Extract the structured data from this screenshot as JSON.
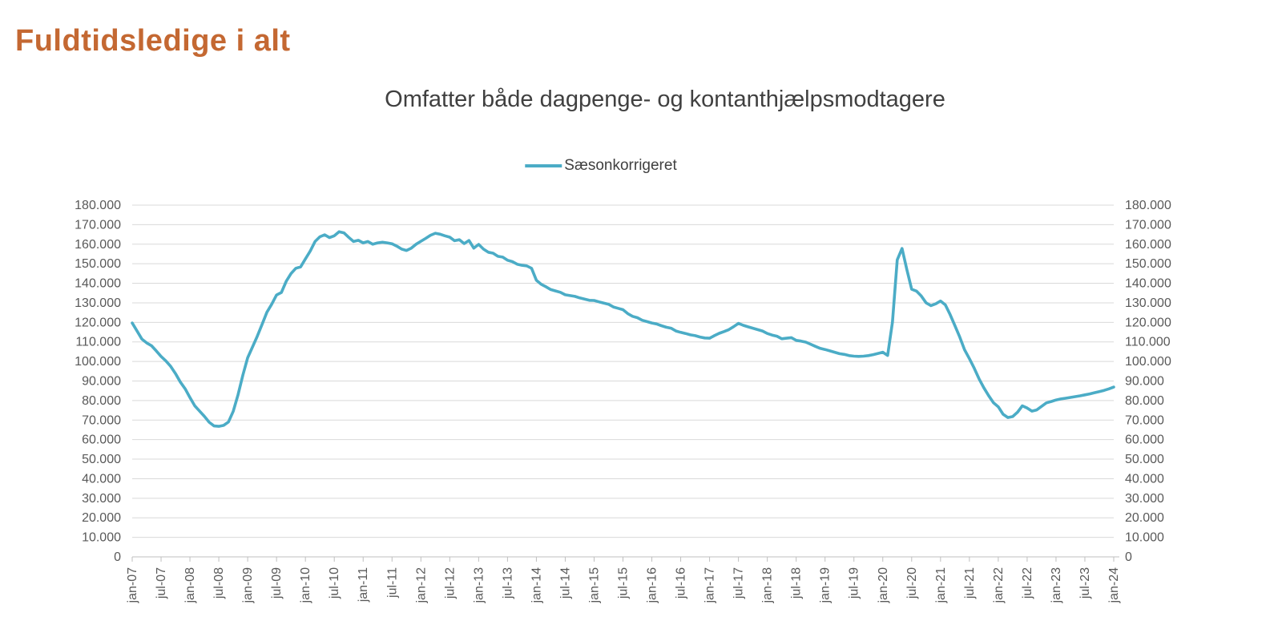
{
  "page": {
    "title": "Fuldtidsledige i alt",
    "title_color": "#C46832"
  },
  "chart": {
    "subtitle": "Omfatter både dagpenge- og kontanthjælpsmodtagere",
    "legend_label": "Sæsonkorrigeret",
    "text_color": "#404040",
    "axis_label_color": "#595959",
    "gridline_color": "#D9D9D9",
    "axis_line_color": "#BFBFBF"
  },
  "chart_data": {
    "type": "line",
    "title": "Omfatter både dagpenge- og kontanthjælpsmodtagere",
    "xlabel": "",
    "ylabel": "",
    "ylim": [
      0,
      180000
    ],
    "grid": "horizontal",
    "dual_y_axis": true,
    "legend_position": "top-center",
    "frequency": "monthly",
    "x_start": "jan-07",
    "x_end": "jan-24",
    "y_ticks": [
      0,
      10000,
      20000,
      30000,
      40000,
      50000,
      60000,
      70000,
      80000,
      90000,
      100000,
      110000,
      120000,
      130000,
      140000,
      150000,
      160000,
      170000,
      180000
    ],
    "x_tick_labels": [
      "jan-07",
      "jul-07",
      "jan-08",
      "jul-08",
      "jan-09",
      "jul-09",
      "jan-10",
      "jul-10",
      "jan-11",
      "jul-11",
      "jan-12",
      "jul-12",
      "jan-13",
      "jul-13",
      "jan-14",
      "jul-14",
      "jan-15",
      "jul-15",
      "jan-16",
      "jul-16",
      "jan-17",
      "jul-17",
      "jan-18",
      "jul-18",
      "jan-19",
      "jul-19",
      "jan-20",
      "jul-20",
      "jan-21",
      "jul-21",
      "jan-22",
      "jul-22",
      "jan-23",
      "jul-23",
      "jan-24"
    ],
    "series": [
      {
        "name": "Sæsonkorrigeret",
        "color": "#4BACC6",
        "values": [
          119700,
          115600,
          111500,
          109500,
          108100,
          105400,
          102600,
          100300,
          97500,
          93800,
          89500,
          86000,
          81500,
          77300,
          74600,
          71900,
          68900,
          67000,
          66800,
          67300,
          69000,
          74500,
          83000,
          93000,
          101900,
          107400,
          112900,
          119000,
          125200,
          129300,
          134000,
          135300,
          141000,
          145000,
          147700,
          148400,
          152500,
          156500,
          161400,
          163800,
          164800,
          163400,
          164300,
          166400,
          165800,
          163500,
          161400,
          162000,
          160700,
          161400,
          160000,
          160700,
          161000,
          160700,
          160200,
          159000,
          157500,
          156800,
          158000,
          160000,
          161500,
          163000,
          164600,
          165600,
          165100,
          164300,
          163600,
          161800,
          162300,
          160300,
          161900,
          158000,
          159900,
          157500,
          155900,
          155400,
          153800,
          153400,
          151800,
          151100,
          149800,
          149200,
          148900,
          147700,
          141600,
          139500,
          138200,
          136800,
          136100,
          135400,
          134100,
          133700,
          133300,
          132500,
          131900,
          131300,
          131200,
          130500,
          129900,
          129300,
          127900,
          127200,
          126500,
          124500,
          123100,
          122400,
          121100,
          120400,
          119700,
          119200,
          118300,
          117500,
          117000,
          115600,
          114900,
          114300,
          113600,
          113200,
          112500,
          112000,
          111900,
          113200,
          114400,
          115300,
          116300,
          117800,
          119500,
          118500,
          117700,
          117000,
          116300,
          115600,
          114300,
          113500,
          112900,
          111600,
          111900,
          112200,
          110800,
          110400,
          109900,
          108800,
          107700,
          106700,
          106100,
          105400,
          104700,
          104000,
          103600,
          103000,
          102700,
          102600,
          102700,
          103000,
          103500,
          104100,
          104700,
          103100,
          120000,
          152000,
          157800,
          147000,
          137000,
          136000,
          133500,
          130000,
          128600,
          129500,
          130900,
          129000,
          124000,
          118300,
          112500,
          106000,
          101400,
          96500,
          91100,
          86500,
          82500,
          78900,
          76800,
          73000,
          71300,
          71800,
          74000,
          77300,
          76200,
          74600,
          75200,
          77000,
          78800,
          79500,
          80300,
          80800,
          81200,
          81600,
          82000,
          82400,
          82900,
          83400,
          84000,
          84600,
          85200,
          86000,
          86900
        ]
      }
    ]
  }
}
